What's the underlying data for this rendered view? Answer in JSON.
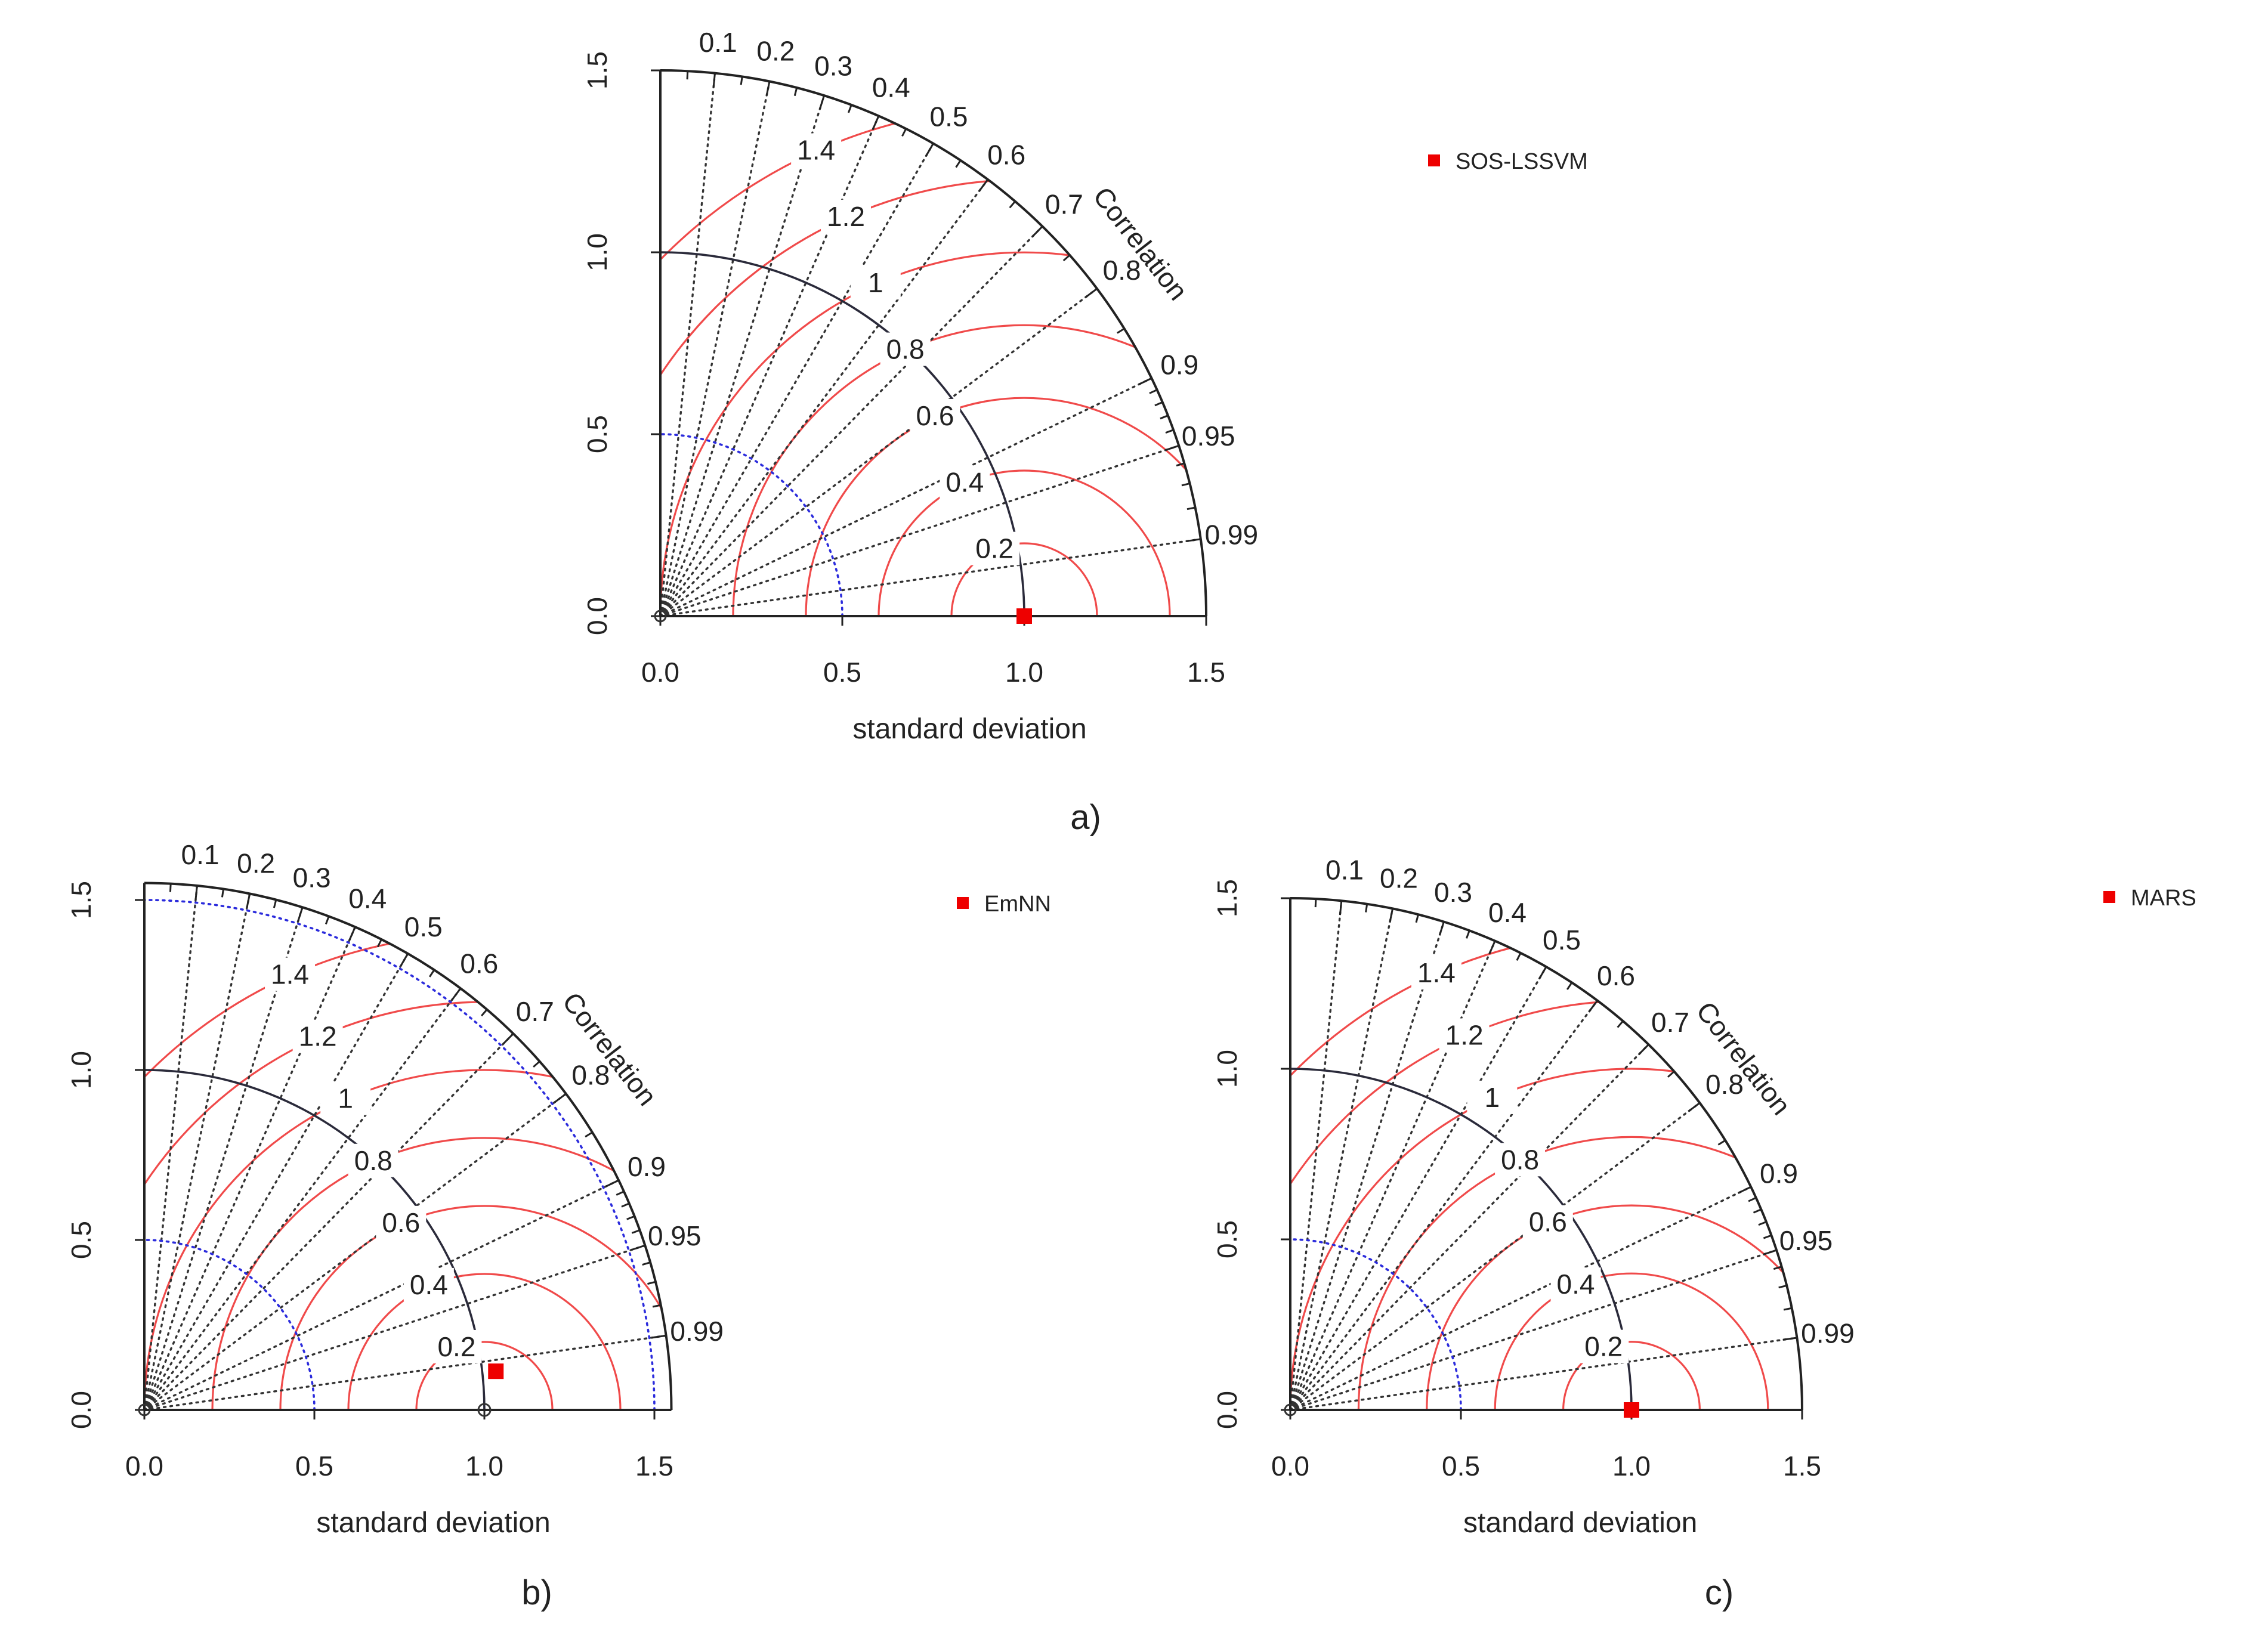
{
  "chart_data": [
    {
      "type": "taylor-diagram",
      "panel_label": "a)",
      "xlabel": "standard deviation",
      "x_ticks": [
        "0.0",
        "0.5",
        "1.0",
        "1.5"
      ],
      "y_ticks": [
        "0.0",
        "0.5",
        "1.0",
        "1.5"
      ],
      "sd_max": 1.5,
      "correlation_title": "Correlation",
      "correlation_labels": [
        "0.1",
        "0.2",
        "0.3",
        "0.4",
        "0.5",
        "0.6",
        "0.7",
        "0.8",
        "0.9",
        "0.95",
        "0.99"
      ],
      "rms_labels": [
        "0.2",
        "0.4",
        "0.6",
        "0.8",
        "1",
        "1.2",
        "1.4"
      ],
      "reference_sd": 1.0,
      "blue_arc_radii": [
        0.5
      ],
      "series": [
        {
          "name": "SOS-LSSVM",
          "color": "#ee0000",
          "sd": 1.0,
          "correlation": 1.0
        }
      ],
      "legend_position": "top-right"
    },
    {
      "type": "taylor-diagram",
      "panel_label": "b)",
      "xlabel": "standard deviation",
      "x_ticks": [
        "0.0",
        "0.5",
        "1.0",
        "1.5"
      ],
      "y_ticks": [
        "0.0",
        "0.5",
        "1.0",
        "1.5"
      ],
      "sd_max": 1.55,
      "correlation_title": "Correlation",
      "correlation_labels": [
        "0.1",
        "0.2",
        "0.3",
        "0.4",
        "0.5",
        "0.6",
        "0.7",
        "0.8",
        "0.9",
        "0.95",
        "0.99"
      ],
      "rms_labels": [
        "0.2",
        "0.4",
        "0.6",
        "0.8",
        "1",
        "1.2",
        "1.4"
      ],
      "reference_sd": 1.0,
      "blue_arc_radii": [
        0.5,
        1.5
      ],
      "series": [
        {
          "name": "EmNN",
          "color": "#ee0000",
          "sd": 1.04,
          "correlation": 0.994
        }
      ],
      "legend_position": "top-right"
    },
    {
      "type": "taylor-diagram",
      "panel_label": "c)",
      "xlabel": "standard deviation",
      "x_ticks": [
        "0.0",
        "0.5",
        "1.0",
        "1.5"
      ],
      "y_ticks": [
        "0.0",
        "0.5",
        "1.0",
        "1.5"
      ],
      "sd_max": 1.5,
      "correlation_title": "Correlation",
      "correlation_labels": [
        "0.1",
        "0.2",
        "0.3",
        "0.4",
        "0.5",
        "0.6",
        "0.7",
        "0.8",
        "0.9",
        "0.95",
        "0.99"
      ],
      "rms_labels": [
        "0.2",
        "0.4",
        "0.6",
        "0.8",
        "1",
        "1.2",
        "1.4"
      ],
      "reference_sd": 1.0,
      "blue_arc_radii": [
        0.5
      ],
      "series": [
        {
          "name": "MARS",
          "color": "#ee0000",
          "sd": 1.0,
          "correlation": 1.0
        }
      ],
      "legend_position": "top-right"
    }
  ]
}
